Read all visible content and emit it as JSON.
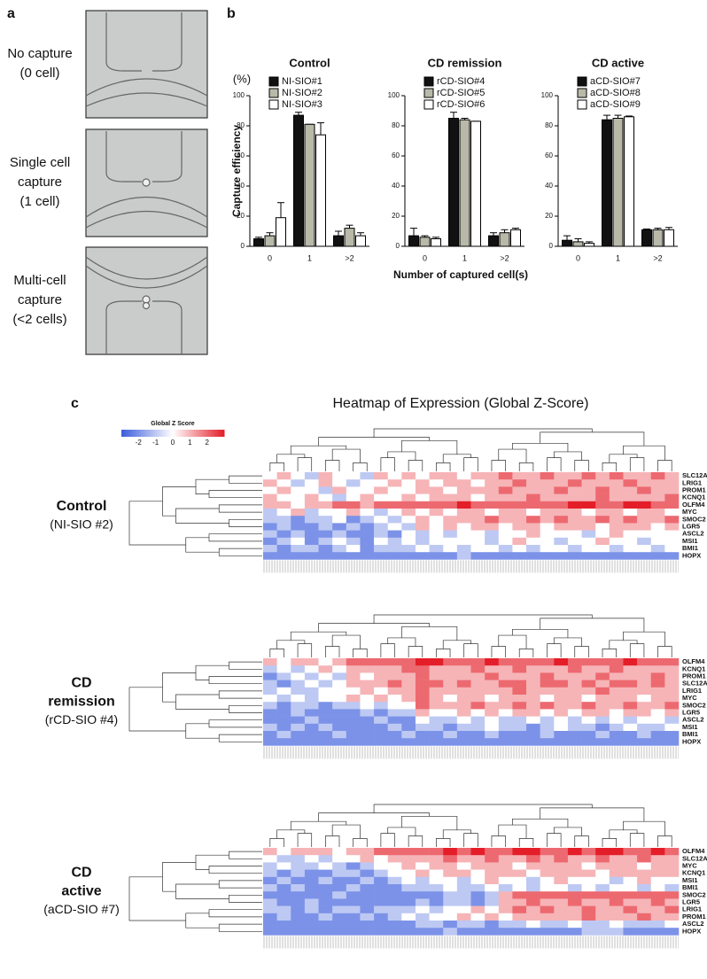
{
  "panel_letters": [
    "a",
    "b",
    "c"
  ],
  "panel_a": {
    "labels": [
      [
        "No capture",
        "(0 cell)"
      ],
      [
        "Single cell",
        "capture",
        "(1 cell)"
      ],
      [
        "Multi-cell",
        "capture",
        "(<2 cells)"
      ]
    ]
  },
  "capture_chart": {
    "ylabel": "Capture efficiency",
    "unit": "(%)",
    "xlabel": "Number of captured cell(s)",
    "ylim": [
      0,
      100
    ],
    "yticks": [
      0,
      20,
      40,
      60,
      80,
      100
    ],
    "categories": [
      "0",
      "1",
      ">2"
    ],
    "panels": [
      {
        "type": "bar",
        "title": "Control",
        "series": [
          {
            "name": "NI-SIO#1",
            "color": "#111111",
            "values": [
              5,
              87,
              7
            ],
            "errors": [
              1,
              2,
              3
            ]
          },
          {
            "name": "NI-SIO#2",
            "color": "#b9b9a9",
            "values": [
              7,
              81,
              12
            ],
            "errors": [
              2,
              0,
              2
            ]
          },
          {
            "name": "NI-SIO#3",
            "color": "#ffffff",
            "values": [
              19,
              74,
              7
            ],
            "errors": [
              10,
              8,
              2
            ]
          }
        ]
      },
      {
        "type": "bar",
        "title": "CD remission",
        "series": [
          {
            "name": "rCD-SIO#4",
            "color": "#111111",
            "values": [
              7,
              85,
              7
            ],
            "errors": [
              5,
              4,
              2
            ]
          },
          {
            "name": "rCD-SIO#5",
            "color": "#b9b9a9",
            "values": [
              6,
              84,
              9
            ],
            "errors": [
              1,
              1,
              2
            ]
          },
          {
            "name": "rCD-SIO#6",
            "color": "#ffffff",
            "values": [
              5,
              83,
              11
            ],
            "errors": [
              1,
              0,
              1
            ]
          }
        ]
      },
      {
        "type": "bar",
        "title": "CD active",
        "series": [
          {
            "name": "aCD-SIO#7",
            "color": "#111111",
            "values": [
              4,
              84,
              11
            ],
            "errors": [
              3,
              3,
              0.5
            ]
          },
          {
            "name": "aCD-SIO#8",
            "color": "#b9b9a9",
            "values": [
              3,
              85,
              11
            ],
            "errors": [
              2,
              2,
              1
            ]
          },
          {
            "name": "aCD-SIO#9",
            "color": "#ffffff",
            "values": [
              2,
              86,
              11
            ],
            "errors": [
              1,
              0.5,
              1.5
            ]
          }
        ]
      }
    ]
  },
  "heatmap_title": "Heatmap of Expression (Global Z-Score)",
  "colorbar": {
    "title": "Global Z Score",
    "lim": [
      -3,
      3
    ],
    "ticks": [
      -2,
      -1,
      0,
      1,
      2
    ]
  },
  "heatmaps": [
    {
      "label_lines": [
        "Control",
        "(NI-SIO #2)"
      ],
      "genes": [
        "SLC12A2",
        "LRIG1",
        "PROM1",
        "KCNQ1",
        "OLFM4",
        "MYC",
        "SMOC2",
        "LGR5",
        "ASCL2",
        "MSI1",
        "BMI1",
        "HOPX"
      ],
      "values": [
        [
          0,
          1,
          0,
          -1,
          1,
          0,
          0,
          -1,
          1,
          0,
          1,
          0,
          1,
          1,
          0,
          1,
          1,
          2,
          1,
          1,
          2,
          1,
          1,
          2,
          1,
          2,
          1,
          1,
          2,
          1
        ],
        [
          1,
          0,
          -1,
          0,
          1,
          0,
          -1,
          0,
          0,
          1,
          0,
          1,
          0,
          1,
          1,
          0,
          1,
          1,
          2,
          1,
          1,
          1,
          2,
          1,
          1,
          1,
          2,
          1,
          1,
          1
        ],
        [
          0,
          1,
          0,
          0,
          -1,
          1,
          0,
          0,
          1,
          0,
          0,
          1,
          1,
          0,
          1,
          1,
          1,
          2,
          1,
          1,
          1,
          2,
          1,
          1,
          2,
          1,
          1,
          2,
          1,
          1
        ],
        [
          1,
          0,
          0,
          1,
          0,
          -1,
          0,
          1,
          0,
          0,
          1,
          0,
          1,
          1,
          1,
          0,
          1,
          1,
          1,
          2,
          1,
          1,
          1,
          1,
          2,
          1,
          1,
          1,
          1,
          2
        ],
        [
          1,
          1,
          0,
          1,
          1,
          2,
          2,
          1,
          2,
          2,
          2,
          2,
          2,
          2,
          3,
          2,
          2,
          2,
          2,
          2,
          2,
          2,
          3,
          3,
          2,
          2,
          3,
          3,
          2,
          2
        ],
        [
          -1,
          0,
          1,
          -1,
          0,
          0,
          1,
          0,
          -1,
          0,
          1,
          0,
          1,
          0,
          1,
          1,
          0,
          1,
          1,
          0,
          1,
          1,
          1,
          0,
          1,
          1,
          0,
          1,
          1,
          0
        ],
        [
          -1,
          -1,
          -2,
          -1,
          -1,
          0,
          -2,
          -1,
          0,
          -1,
          0,
          1,
          0,
          1,
          1,
          1,
          2,
          1,
          1,
          2,
          1,
          2,
          1,
          1,
          2,
          1,
          2,
          1,
          1,
          2
        ],
        [
          -2,
          -1,
          -2,
          -2,
          -1,
          -2,
          -1,
          -2,
          -1,
          0,
          -1,
          1,
          0,
          1,
          0,
          1,
          1,
          0,
          1,
          1,
          0,
          1,
          1,
          1,
          0,
          1,
          1,
          1,
          0,
          1
        ],
        [
          -1,
          -2,
          -1,
          -2,
          -2,
          -1,
          -2,
          -2,
          -1,
          -2,
          0,
          -1,
          0,
          -1,
          0,
          0,
          -1,
          0,
          0,
          1,
          0,
          0,
          0,
          -1,
          0,
          1,
          0,
          0,
          0,
          0
        ],
        [
          -2,
          -1,
          0,
          -2,
          -1,
          0,
          -1,
          -2,
          0,
          -1,
          0,
          -1,
          0,
          0,
          0,
          0,
          -1,
          0,
          1,
          0,
          0,
          -1,
          0,
          0,
          1,
          0,
          0,
          -1,
          0,
          0
        ],
        [
          -1,
          -2,
          -1,
          -1,
          -2,
          -1,
          0,
          -2,
          -1,
          -1,
          -1,
          0,
          -1,
          0,
          -1,
          0,
          0,
          -1,
          0,
          -1,
          0,
          0,
          -1,
          0,
          0,
          -1,
          0,
          0,
          -1,
          0
        ],
        [
          -2,
          -2,
          -2,
          -2,
          -2,
          -2,
          -2,
          -2,
          -2,
          -2,
          -2,
          -2,
          -2,
          -2,
          -1,
          -2,
          -2,
          -2,
          -2,
          -2,
          -2,
          -2,
          -2,
          -2,
          -2,
          -2,
          -2,
          -2,
          -2,
          -2
        ]
      ]
    },
    {
      "label_lines": [
        "CD",
        "remission",
        "(rCD-SIO #4)"
      ],
      "genes": [
        "OLFM4",
        "KCNQ1",
        "PROM1",
        "SLC12A2",
        "LRIG1",
        "MYC",
        "SMOC2",
        "LGR5",
        "ASCL2",
        "MSI1",
        "BMI1",
        "HOPX"
      ],
      "values": [
        [
          1,
          0,
          1,
          1,
          0,
          1,
          2,
          2,
          2,
          2,
          2,
          3,
          3,
          2,
          2,
          2,
          3,
          2,
          2,
          2,
          2,
          3,
          2,
          2,
          2,
          2,
          3,
          2,
          2,
          2
        ],
        [
          -1,
          0,
          -1,
          0,
          1,
          0,
          1,
          1,
          1,
          1,
          2,
          2,
          1,
          1,
          1,
          2,
          1,
          1,
          2,
          1,
          1,
          1,
          2,
          1,
          1,
          2,
          1,
          1,
          1,
          1
        ],
        [
          -2,
          -1,
          0,
          -1,
          0,
          -1,
          1,
          0,
          1,
          1,
          1,
          2,
          1,
          1,
          1,
          1,
          2,
          1,
          1,
          1,
          2,
          1,
          1,
          1,
          2,
          1,
          1,
          1,
          2,
          1
        ],
        [
          -1,
          -2,
          -1,
          0,
          -1,
          0,
          1,
          1,
          1,
          2,
          1,
          2,
          2,
          1,
          2,
          1,
          1,
          2,
          2,
          1,
          2,
          2,
          1,
          2,
          1,
          2,
          2,
          1,
          2,
          1
        ],
        [
          -1,
          0,
          -1,
          -1,
          0,
          0,
          0,
          1,
          0,
          1,
          1,
          2,
          1,
          1,
          1,
          1,
          1,
          1,
          2,
          1,
          1,
          1,
          1,
          1,
          2,
          1,
          1,
          1,
          1,
          1
        ],
        [
          0,
          -1,
          0,
          -1,
          0,
          0,
          1,
          0,
          1,
          0,
          1,
          2,
          1,
          0,
          1,
          1,
          0,
          1,
          1,
          1,
          0,
          1,
          1,
          0,
          1,
          1,
          1,
          0,
          1,
          1
        ],
        [
          -1,
          -2,
          -1,
          -1,
          -2,
          -1,
          -1,
          0,
          -1,
          0,
          0,
          2,
          1,
          1,
          1,
          2,
          1,
          1,
          2,
          1,
          2,
          1,
          1,
          2,
          1,
          1,
          2,
          1,
          1,
          2
        ],
        [
          -2,
          -2,
          -1,
          -2,
          -2,
          -2,
          -2,
          -1,
          -2,
          -1,
          -1,
          1,
          0,
          0,
          1,
          0,
          1,
          0,
          1,
          1,
          0,
          1,
          0,
          1,
          1,
          0,
          1,
          1,
          0,
          1
        ],
        [
          -2,
          -2,
          -2,
          -1,
          -2,
          -2,
          -2,
          -2,
          -1,
          -2,
          -2,
          0,
          -1,
          -1,
          0,
          -1,
          0,
          -1,
          -1,
          0,
          -1,
          0,
          -1,
          0,
          -1,
          0,
          -1,
          0,
          0,
          -1
        ],
        [
          -1,
          -2,
          -1,
          -2,
          -1,
          -2,
          -2,
          -2,
          -2,
          -1,
          -2,
          -1,
          -1,
          -2,
          -1,
          -1,
          0,
          -1,
          -1,
          -2,
          -1,
          0,
          -1,
          -1,
          -2,
          -1,
          0,
          -1,
          -1,
          0
        ],
        [
          -2,
          -1,
          -2,
          -2,
          -2,
          -1,
          -2,
          -2,
          -2,
          -2,
          -1,
          -2,
          -2,
          -1,
          -2,
          -2,
          -1,
          -2,
          -2,
          -2,
          -1,
          -2,
          -2,
          -2,
          -1,
          -2,
          -2,
          -1,
          -2,
          -2
        ],
        [
          -2,
          -2,
          -2,
          -2,
          -2,
          -2,
          -2,
          -2,
          -2,
          -2,
          -2,
          -2,
          -2,
          -2,
          -2,
          -2,
          -2,
          -2,
          -2,
          -2,
          -2,
          -2,
          -2,
          -2,
          -2,
          -2,
          -2,
          -2,
          -2,
          -2
        ]
      ]
    },
    {
      "label_lines": [
        "CD",
        "active",
        "(aCD-SIO #7)"
      ],
      "genes": [
        "OLFM4",
        "SLC12A2",
        "MYC",
        "KCNQ1",
        "MSI1",
        "BMI1",
        "SMOC2",
        "LGR5",
        "LRIG1",
        "PROM1",
        "ASCL2",
        "HOPX"
      ],
      "values": [
        [
          1,
          0,
          1,
          1,
          1,
          0,
          1,
          1,
          2,
          2,
          2,
          2,
          2,
          3,
          2,
          3,
          2,
          2,
          3,
          3,
          2,
          2,
          3,
          2,
          3,
          3,
          2,
          2,
          3,
          2
        ],
        [
          0,
          -1,
          -1,
          0,
          -1,
          0,
          0,
          1,
          0,
          1,
          1,
          1,
          1,
          2,
          1,
          1,
          2,
          1,
          1,
          2,
          1,
          2,
          1,
          1,
          2,
          1,
          1,
          2,
          1,
          1
        ],
        [
          -1,
          0,
          -1,
          -1,
          0,
          -1,
          -2,
          -1,
          0,
          0,
          1,
          0,
          1,
          1,
          0,
          1,
          1,
          1,
          0,
          1,
          1,
          1,
          1,
          0,
          1,
          1,
          1,
          0,
          1,
          1
        ],
        [
          -1,
          -2,
          -1,
          -2,
          -2,
          -1,
          -1,
          -2,
          -1,
          0,
          0,
          1,
          0,
          1,
          1,
          0,
          1,
          1,
          1,
          0,
          1,
          1,
          1,
          1,
          0,
          1,
          1,
          1,
          1,
          1
        ],
        [
          -2,
          -1,
          -2,
          -2,
          -1,
          -2,
          -2,
          -1,
          -2,
          -1,
          0,
          -1,
          0,
          0,
          -1,
          0,
          1,
          0,
          0,
          -1,
          0,
          1,
          0,
          0,
          0,
          -1,
          0,
          1,
          0,
          0
        ],
        [
          -1,
          -2,
          -1,
          -2,
          -2,
          -2,
          -1,
          -2,
          -2,
          -2,
          -1,
          -1,
          -1,
          0,
          -1,
          -1,
          0,
          -1,
          0,
          -1,
          0,
          0,
          -1,
          0,
          -1,
          0,
          0,
          -1,
          0,
          -1
        ],
        [
          -2,
          -2,
          -2,
          -2,
          -2,
          -1,
          -2,
          -2,
          -2,
          -2,
          -2,
          -2,
          -2,
          -1,
          -1,
          -2,
          -1,
          1,
          2,
          2,
          2,
          2,
          2,
          2,
          2,
          2,
          2,
          2,
          2,
          2
        ],
        [
          -1,
          -2,
          -2,
          -1,
          -2,
          -2,
          -2,
          -2,
          -2,
          -2,
          -2,
          -1,
          -2,
          -1,
          -1,
          -2,
          -1,
          1,
          1,
          2,
          1,
          1,
          2,
          1,
          1,
          2,
          1,
          1,
          2,
          1
        ],
        [
          -1,
          -1,
          -2,
          -1,
          -2,
          -1,
          -1,
          -2,
          -1,
          -1,
          -1,
          0,
          -1,
          0,
          0,
          1,
          0,
          1,
          2,
          1,
          2,
          1,
          1,
          2,
          1,
          1,
          2,
          1,
          1,
          2
        ],
        [
          -2,
          -1,
          -2,
          -2,
          -1,
          -2,
          -2,
          -1,
          -2,
          -1,
          0,
          -1,
          0,
          0,
          1,
          0,
          1,
          0,
          1,
          1,
          1,
          1,
          1,
          2,
          1,
          1,
          1,
          2,
          1,
          1
        ],
        [
          -2,
          -2,
          -2,
          -2,
          -2,
          -2,
          -2,
          -2,
          -2,
          -2,
          -2,
          -1,
          -1,
          -2,
          -1,
          -1,
          -2,
          -1,
          -1,
          0,
          -1,
          -1,
          0,
          -1,
          -1,
          0,
          -1,
          -1,
          -1,
          0
        ],
        [
          -2,
          -2,
          -2,
          -2,
          -2,
          -2,
          -2,
          -2,
          -2,
          -2,
          -2,
          -2,
          -2,
          -1,
          -2,
          -2,
          -2,
          -2,
          -2,
          -2,
          -2,
          -2,
          -2,
          -1,
          -1,
          -1,
          -2,
          -2,
          -2,
          -2
        ]
      ]
    }
  ]
}
